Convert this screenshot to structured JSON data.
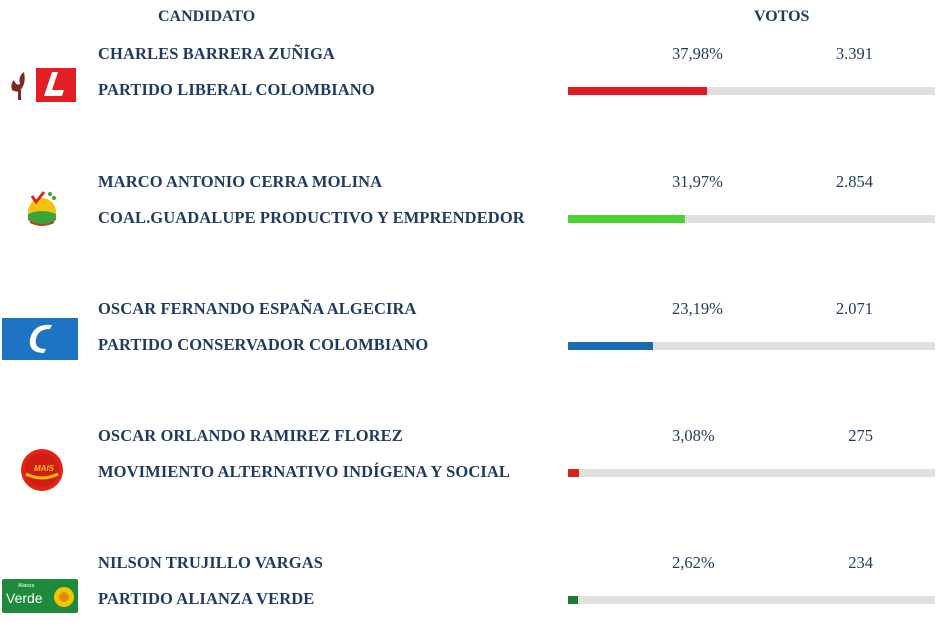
{
  "header": {
    "candidate_label": "CANDIDATO",
    "votes_label": "VOTOS"
  },
  "candidates": [
    {
      "name": "CHARLES BARRERA ZUÑIGA",
      "party": "PARTIDO LIBERAL COLOMBIANO",
      "percent": "37,98%",
      "votes": "3.391",
      "share": 37.98,
      "color": "#e01a22",
      "logo": "liberal-party-logo"
    },
    {
      "name": "MARCO ANTONIO CERRA MOLINA",
      "party": "COAL.GUADALUPE PRODUCTIVO Y EMPRENDEDOR",
      "percent": "31,97%",
      "votes": "2.854",
      "share": 31.97,
      "color": "#4cd137",
      "logo": "guadalupe-coalition-logo"
    },
    {
      "name": "OSCAR FERNANDO ESPAÑA ALGECIRA",
      "party": "PARTIDO CONSERVADOR COLOMBIANO",
      "percent": "23,19%",
      "votes": "2.071",
      "share": 23.19,
      "color": "#1a6bb0",
      "logo": "conservative-party-logo"
    },
    {
      "name": "OSCAR ORLANDO RAMIREZ FLOREZ",
      "party": "MOVIMIENTO ALTERNATIVO INDÍGENA Y SOCIAL",
      "percent": "3,08%",
      "votes": "275",
      "share": 3.08,
      "color": "#d9231c",
      "logo": "mais-logo"
    },
    {
      "name": "NILSON TRUJILLO VARGAS",
      "party": "PARTIDO ALIANZA VERDE",
      "percent": "2,62%",
      "votes": "234",
      "share": 2.62,
      "color": "#1f7a34",
      "logo": "alianza-verde-logo"
    }
  ],
  "logos": {
    "mais_text": "MAIS",
    "verde_text": "Verde",
    "verde_small": "Alianza"
  }
}
